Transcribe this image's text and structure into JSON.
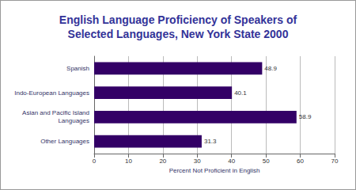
{
  "chart_data": {
    "type": "bar",
    "orientation": "horizontal",
    "title": "English Language Proficiency of Speakers of\nSelected Languages, New York State 2000",
    "categories": [
      "Spanish",
      "Indo-European Languages",
      "Asian and Pacific Island\nLanguages",
      "Other Languages"
    ],
    "values": [
      48.9,
      40.1,
      58.9,
      31.3
    ],
    "color": "#330066",
    "xlabel": "Percent Not Proficient in English",
    "xlim": [
      0,
      70
    ],
    "xticks": [
      0,
      10,
      20,
      30,
      40,
      50,
      60,
      70
    ],
    "grid": true,
    "data_labels": true
  }
}
